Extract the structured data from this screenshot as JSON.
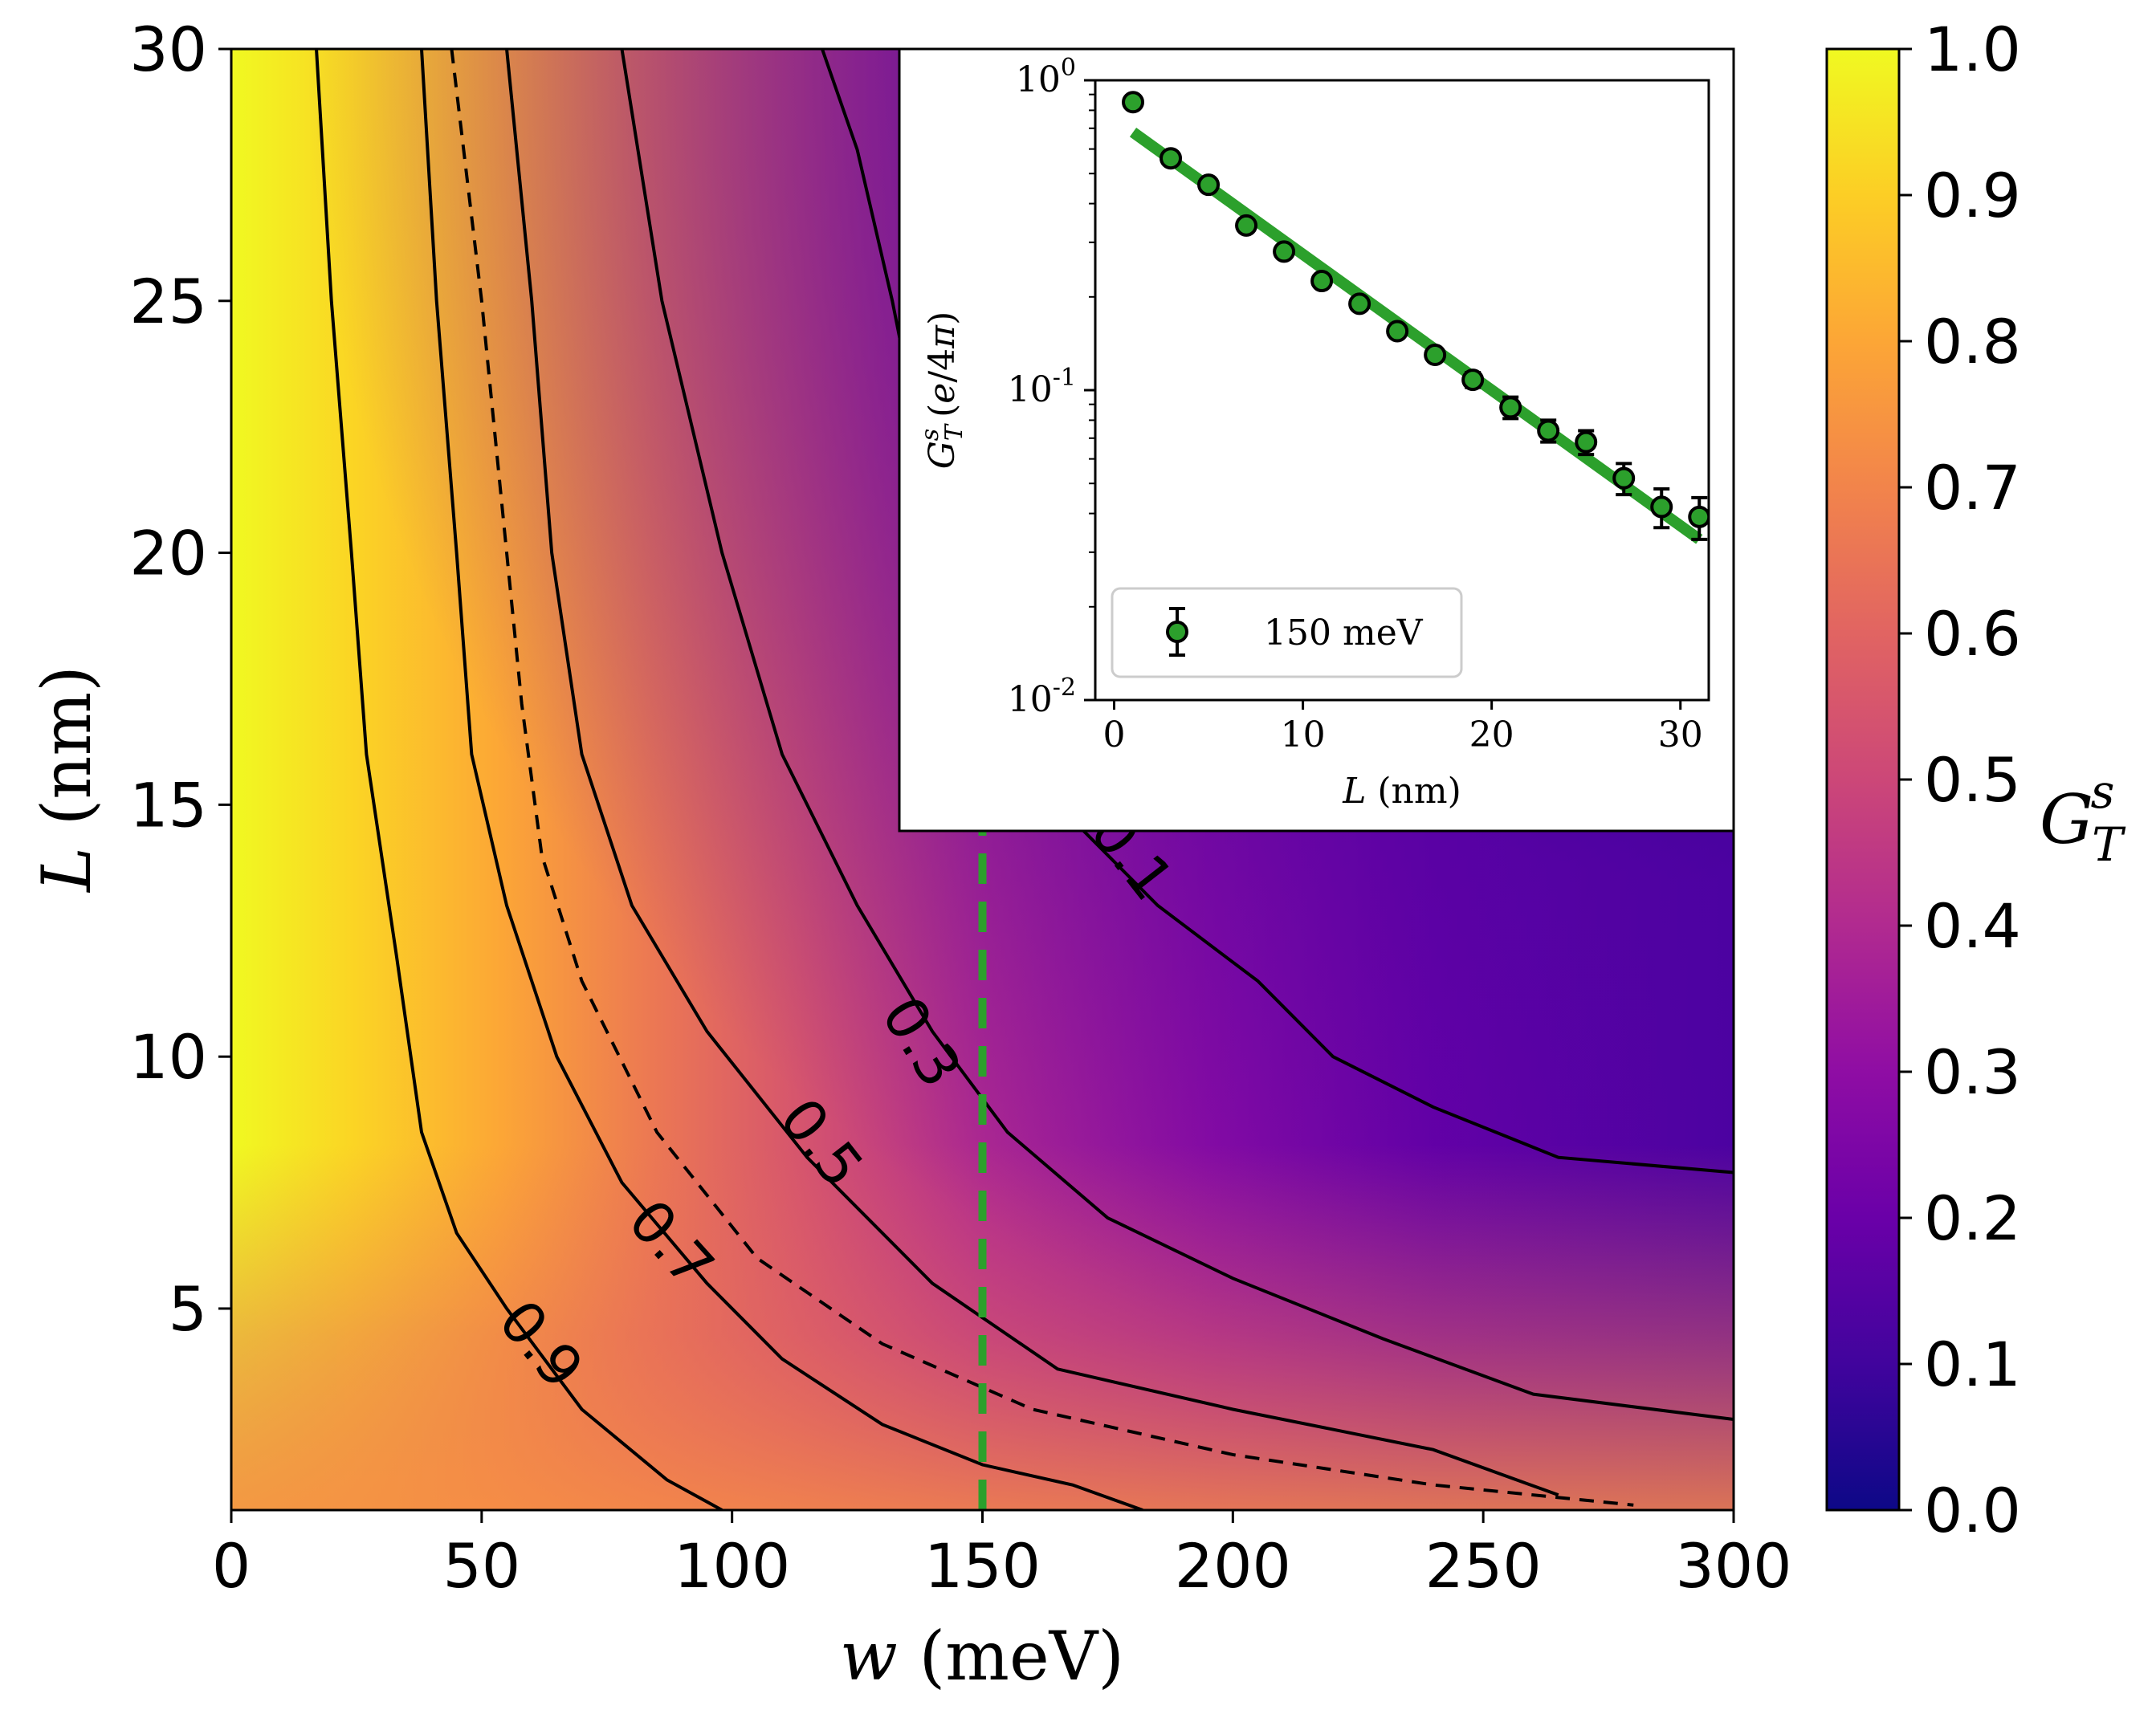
{
  "chart_data": [
    {
      "type": "heatmap",
      "xlabel": "w (meV)",
      "ylabel": "L (nm)",
      "xlim": [
        0,
        300
      ],
      "ylim": [
        1,
        30
      ],
      "x_ticks": [
        "0",
        "50",
        "100",
        "150",
        "200",
        "250",
        "300"
      ],
      "y_ticks": [
        "5",
        "10",
        "15",
        "20",
        "25",
        "30"
      ],
      "colormap": "plasma",
      "colorbar": {
        "label": "G_T^s",
        "range": [
          0.0,
          1.0
        ],
        "ticks": [
          "0.0",
          "0.1",
          "0.2",
          "0.3",
          "0.4",
          "0.5",
          "0.6",
          "0.7",
          "0.8",
          "0.9",
          "1.0"
        ]
      },
      "contours": [
        {
          "level": 0.9,
          "label": "0.9",
          "style": "solid",
          "points": [
            [
              17,
              30
            ],
            [
              20,
              25
            ],
            [
              24,
              20
            ],
            [
              27,
              16
            ],
            [
              33,
              12
            ],
            [
              38,
              8.5
            ],
            [
              45,
              6.5
            ],
            [
              55,
              5
            ],
            [
              70,
              3
            ],
            [
              87,
              1.6
            ],
            [
              98,
              1
            ]
          ]
        },
        {
          "level": 0.7,
          "label": "0.7",
          "style": "solid",
          "points": [
            [
              38,
              30
            ],
            [
              41,
              25
            ],
            [
              45,
              20
            ],
            [
              48,
              16
            ],
            [
              55,
              13
            ],
            [
              65,
              10
            ],
            [
              78,
              7.5
            ],
            [
              95,
              5.5
            ],
            [
              110,
              4
            ],
            [
              130,
              2.7
            ],
            [
              150,
              1.9
            ],
            [
              168,
              1.5
            ],
            [
              182,
              1
            ]
          ]
        },
        {
          "level": 0.6,
          "label": "",
          "style": "dashed",
          "points": [
            [
              44,
              30
            ],
            [
              50,
              25
            ],
            [
              55,
              20
            ],
            [
              58,
              17
            ],
            [
              62,
              14
            ],
            [
              70,
              11.5
            ],
            [
              85,
              8.5
            ],
            [
              105,
              6
            ],
            [
              130,
              4.3
            ],
            [
              160,
              3
            ],
            [
              200,
              2.1
            ],
            [
              240,
              1.5
            ],
            [
              280,
              1.1
            ]
          ]
        },
        {
          "level": 0.5,
          "label": "0.5",
          "style": "solid",
          "points": [
            [
              55,
              30
            ],
            [
              60,
              25
            ],
            [
              64,
              20
            ],
            [
              70,
              16
            ],
            [
              80,
              13
            ],
            [
              95,
              10.5
            ],
            [
              115,
              8
            ],
            [
              140,
              5.5
            ],
            [
              165,
              3.8
            ],
            [
              200,
              3
            ],
            [
              240,
              2.2
            ],
            [
              265,
              1.3
            ]
          ]
        },
        {
          "level": 0.3,
          "label": "0.3",
          "style": "solid",
          "points": [
            [
              78,
              30
            ],
            [
              86,
              25
            ],
            [
              98,
              20
            ],
            [
              110,
              16
            ],
            [
              125,
              13
            ],
            [
              140,
              10.5
            ],
            [
              155,
              8.5
            ],
            [
              175,
              6.8
            ],
            [
              200,
              5.6
            ],
            [
              230,
              4.4
            ],
            [
              260,
              3.3
            ],
            [
              300,
              2.8
            ]
          ]
        },
        {
          "level": 0.1,
          "label": "0.1",
          "style": "solid",
          "points": [
            [
              118,
              30
            ],
            [
              125,
              28
            ],
            [
              132,
              25
            ],
            [
              138,
              22
            ],
            [
              150,
              18
            ],
            [
              165,
              15
            ],
            [
              185,
              13
            ],
            [
              205,
              11.5
            ],
            [
              220,
              10
            ],
            [
              240,
              9
            ],
            [
              265,
              8
            ],
            [
              300,
              7.7
            ]
          ]
        }
      ],
      "marker_line": {
        "x": 150,
        "style": "dashed",
        "color": "#2ca02c"
      }
    },
    {
      "type": "scatter",
      "xlabel": "L (nm)",
      "ylabel": "G_T^s (e/4π)",
      "xlim": [
        -1,
        31.5
      ],
      "ylim": [
        0.01,
        1.0
      ],
      "yscale": "log",
      "x_ticks": [
        "0",
        "10",
        "20",
        "30"
      ],
      "y_ticks": [
        "10^-2",
        "10^-1",
        "10^0"
      ],
      "series": [
        {
          "name": "150 meV",
          "color": "#2ca02c",
          "x": [
            1,
            3,
            5,
            7,
            9,
            11,
            13,
            15,
            17,
            19,
            21,
            23,
            25,
            27,
            29,
            31
          ],
          "y": [
            0.85,
            0.56,
            0.46,
            0.34,
            0.28,
            0.225,
            0.19,
            0.155,
            0.13,
            0.108,
            0.088,
            0.074,
            0.068,
            0.052,
            0.042,
            0.039
          ],
          "yerr": [
            0,
            0,
            0,
            0,
            0,
            0,
            0,
            0,
            0,
            0.006,
            0.007,
            0.006,
            0.006,
            0.006,
            0.006,
            0.006
          ]
        }
      ],
      "fit_line": {
        "x": [
          1,
          31
        ],
        "y": [
          0.68,
          0.033
        ],
        "color": "#2ca02c"
      },
      "legend": {
        "position": "lower-left"
      }
    }
  ]
}
